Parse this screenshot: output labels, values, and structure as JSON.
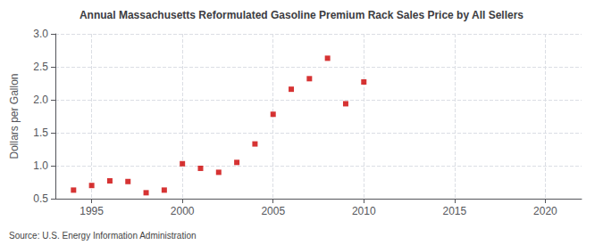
{
  "chart_data": {
    "type": "scatter",
    "title": "Annual Massachusetts Reformulated Gasoline Premium Rack Sales Price by All Sellers",
    "ylabel": "Dollars per Gallon",
    "source": "Source: U.S. Energy Information Administration",
    "x": [
      1994,
      1995,
      1996,
      1997,
      1998,
      1999,
      2000,
      2001,
      2002,
      2003,
      2004,
      2005,
      2006,
      2007,
      2008,
      2009,
      2010
    ],
    "values": [
      0.63,
      0.7,
      0.77,
      0.76,
      0.59,
      0.63,
      1.03,
      0.96,
      0.9,
      1.05,
      1.33,
      1.78,
      2.16,
      2.32,
      2.63,
      1.94,
      2.27
    ],
    "color": "#cc0000",
    "marker": "square",
    "xlim": [
      1993,
      2022
    ],
    "ylim": [
      0.5,
      3.0
    ],
    "xticks": [
      1995,
      2000,
      2005,
      2010,
      2015,
      2020
    ],
    "yticks": [
      0.5,
      {
        "value": 1.0,
        "label": "1.0"
      },
      1.5,
      {
        "value": 2.0,
        "label": "2.0"
      },
      2.5,
      {
        "value": 3.0,
        "label": "3.0"
      }
    ],
    "grid": true
  }
}
